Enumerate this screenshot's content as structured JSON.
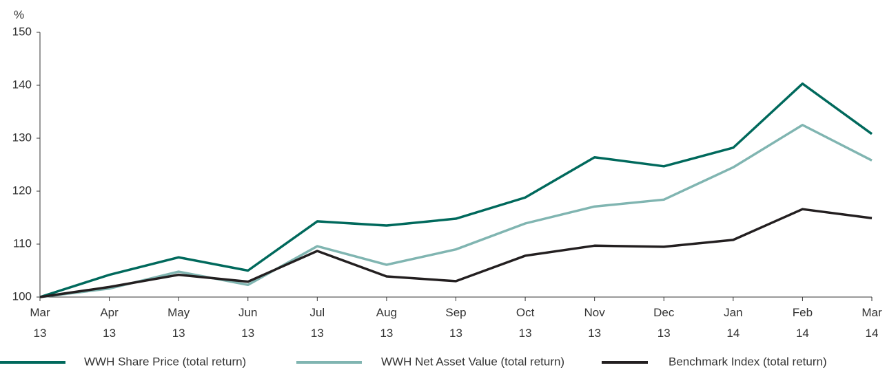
{
  "chart_data": {
    "type": "line",
    "y_label": "%",
    "categories": [
      "Mar 13",
      "Apr 13",
      "May 13",
      "Jun 13",
      "Jul 13",
      "Aug 13",
      "Sep 13",
      "Oct 13",
      "Nov 13",
      "Dec 13",
      "Jan 14",
      "Feb 14",
      "Mar 14"
    ],
    "series": [
      {
        "name": "WWH Share Price (total return)",
        "color": "#00695c",
        "values": [
          100,
          104.2,
          107.5,
          105,
          114.3,
          113.5,
          114.8,
          118.8,
          126.4,
          124.7,
          128.2,
          140.3,
          130.8
        ]
      },
      {
        "name": "WWH Net Asset Value (total return)",
        "color": "#80b5b1",
        "values": [
          100,
          101.6,
          104.8,
          102.3,
          109.6,
          106.1,
          109,
          113.9,
          117.1,
          118.4,
          124.5,
          132.5,
          125.8
        ]
      },
      {
        "name": "Benchmark Index (total return)",
        "color": "#231f20",
        "values": [
          100,
          101.9,
          104.2,
          102.9,
          108.7,
          103.9,
          103,
          107.8,
          109.7,
          109.5,
          110.8,
          116.6,
          114.9
        ]
      }
    ],
    "ylim": [
      100,
      150
    ],
    "yticks": [
      100,
      110,
      120,
      130,
      140,
      150
    ]
  }
}
